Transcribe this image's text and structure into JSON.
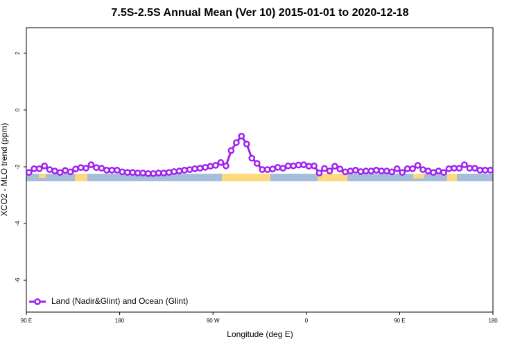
{
  "chart_data": {
    "type": "line",
    "title": "7.5S-2.5S Annual Mean (Ver 10)   2015-01-01 to 2020-12-18",
    "x_label": "Longitude (deg E)",
    "y_label": "XCO2 - MLO trend (ppm)",
    "xlim": [
      90,
      540
    ],
    "ylim": [
      -7.12,
      2.9
    ],
    "xticks": [
      {
        "value": 90,
        "label": "90 E"
      },
      180,
      {
        "value": 270,
        "label": "90 W"
      },
      {
        "value": 360,
        "label": "0"
      },
      {
        "value": 450,
        "label": "90 E"
      },
      {
        "value": 540,
        "label": "180"
      }
    ],
    "yticks": [
      -6,
      -4,
      -2,
      0,
      2
    ],
    "legend": "bottom-left",
    "x": [
      92.5,
      97.5,
      102.5,
      107.5,
      112.5,
      117.5,
      122.5,
      127.5,
      132.5,
      137.5,
      142.5,
      147.5,
      152.5,
      157.5,
      162.5,
      167.5,
      172.5,
      177.5,
      182.5,
      187.5,
      192.5,
      197.5,
      202.5,
      207.5,
      212.5,
      217.5,
      222.5,
      227.5,
      232.5,
      237.5,
      242.5,
      247.5,
      252.5,
      257.5,
      262.5,
      267.5,
      272.5,
      277.5,
      282.5,
      287.5,
      292.5,
      297.5,
      302.5,
      307.5,
      312.5,
      317.5,
      322.5,
      327.5,
      332.5,
      337.5,
      342.5,
      347.5,
      352.5,
      357.5,
      362.5,
      367.5,
      372.5,
      377.5,
      382.5,
      387.5,
      392.5,
      397.5,
      402.5,
      407.5,
      412.5,
      417.5,
      422.5,
      427.5,
      432.5,
      437.5,
      442.5,
      447.5,
      452.5,
      457.5,
      462.5,
      467.5,
      472.5,
      477.5,
      482.5,
      487.5,
      492.5,
      497.5,
      502.5,
      507.5,
      512.5,
      517.5,
      522.5,
      527.5,
      532.5,
      537.5
    ],
    "series": [
      {
        "name": "Land (Nadir&Glint) and Ocean (Glint)",
        "color": "#a020f0",
        "values": [
          -2.2,
          -2.07,
          -2.07,
          -1.97,
          -2.1,
          -2.15,
          -2.2,
          -2.13,
          -2.18,
          -2.08,
          -2.03,
          -2.05,
          -1.93,
          -2.03,
          -2.05,
          -2.12,
          -2.12,
          -2.12,
          -2.18,
          -2.2,
          -2.2,
          -2.22,
          -2.22,
          -2.24,
          -2.24,
          -2.22,
          -2.22,
          -2.2,
          -2.17,
          -2.15,
          -2.12,
          -2.1,
          -2.07,
          -2.05,
          -2.02,
          -1.98,
          -1.95,
          -1.85,
          -1.97,
          -1.43,
          -1.15,
          -0.92,
          -1.2,
          -1.7,
          -1.88,
          -2.1,
          -2.1,
          -2.08,
          -2.02,
          -2.05,
          -1.97,
          -1.97,
          -1.94,
          -1.93,
          -1.98,
          -1.97,
          -2.22,
          -2.06,
          -2.15,
          -1.98,
          -2.08,
          -2.18,
          -2.15,
          -2.12,
          -2.17,
          -2.15,
          -2.15,
          -2.12,
          -2.15,
          -2.15,
          -2.18,
          -2.07,
          -2.2,
          -2.07,
          -2.07,
          -1.95,
          -2.1,
          -2.15,
          -2.2,
          -2.15,
          -2.2,
          -2.07,
          -2.05,
          -2.05,
          -1.93,
          -2.05,
          -2.05,
          -2.12,
          -2.12,
          -2.12
        ]
      }
    ]
  }
}
